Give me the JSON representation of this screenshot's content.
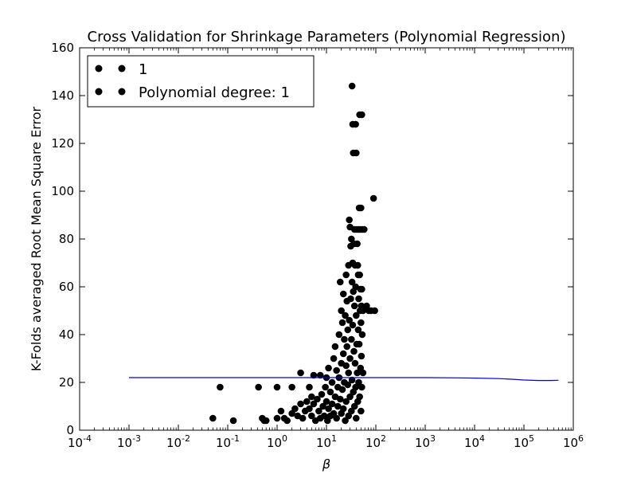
{
  "chart_data": {
    "type": "scatter",
    "title": "Cross Validation for Shrinkage Parameters (Polynomial Regression)",
    "xlabel": "β",
    "ylabel": "K-Folds averaged Root Mean Square Error",
    "xscale": "log",
    "xlim": [
      0.0001,
      1000000
    ],
    "ylim": [
      0,
      160
    ],
    "x_ticks": [
      {
        "value": 0.0001,
        "base": "10",
        "exp": "-4"
      },
      {
        "value": 0.001,
        "base": "10",
        "exp": "-3"
      },
      {
        "value": 0.01,
        "base": "10",
        "exp": "-2"
      },
      {
        "value": 0.1,
        "base": "10",
        "exp": "-1"
      },
      {
        "value": 1,
        "base": "10",
        "exp": "0"
      },
      {
        "value": 10,
        "base": "10",
        "exp": "1"
      },
      {
        "value": 100,
        "base": "10",
        "exp": "2"
      },
      {
        "value": 1000,
        "base": "10",
        "exp": "3"
      },
      {
        "value": 10000,
        "base": "10",
        "exp": "4"
      },
      {
        "value": 100000,
        "base": "10",
        "exp": "5"
      },
      {
        "value": 1000000,
        "base": "10",
        "exp": "6"
      }
    ],
    "y_ticks": [
      0,
      20,
      40,
      60,
      80,
      100,
      120,
      140,
      160
    ],
    "legend": {
      "location": "upper-left",
      "entries": [
        {
          "label": "1",
          "marker": "circle",
          "color": "#000000"
        },
        {
          "label": "Polynomial degree: 1",
          "marker": "circle",
          "color": "#000000"
        }
      ]
    },
    "series": [
      {
        "name": "Polynomial degree: 1",
        "kind": "scatter",
        "color": "#000000",
        "points": [
          [
            0.05,
            5
          ],
          [
            0.07,
            18
          ],
          [
            0.13,
            4
          ],
          [
            0.42,
            18
          ],
          [
            0.5,
            5
          ],
          [
            0.55,
            4
          ],
          [
            0.6,
            4
          ],
          [
            1.0,
            18
          ],
          [
            1.0,
            5
          ],
          [
            1.2,
            8
          ],
          [
            1.4,
            5
          ],
          [
            1.6,
            4
          ],
          [
            2.0,
            18
          ],
          [
            2.0,
            7
          ],
          [
            2.3,
            9
          ],
          [
            2.6,
            6
          ],
          [
            3.0,
            24
          ],
          [
            3.0,
            11
          ],
          [
            3.3,
            5
          ],
          [
            3.7,
            8
          ],
          [
            4.0,
            12
          ],
          [
            4.5,
            18
          ],
          [
            4.5,
            9
          ],
          [
            5.0,
            14
          ],
          [
            5.0,
            6
          ],
          [
            5.5,
            23
          ],
          [
            5.5,
            11
          ],
          [
            6.0,
            4
          ],
          [
            6.5,
            13
          ],
          [
            7.0,
            8
          ],
          [
            7.5,
            23
          ],
          [
            7.5,
            5
          ],
          [
            8.0,
            15
          ],
          [
            8.5,
            10
          ],
          [
            9.0,
            6
          ],
          [
            9.5,
            18
          ],
          [
            10.0,
            22
          ],
          [
            10.0,
            12
          ],
          [
            10.5,
            4
          ],
          [
            11.0,
            26
          ],
          [
            11.0,
            9
          ],
          [
            12.0,
            16
          ],
          [
            12.0,
            6
          ],
          [
            13.0,
            20
          ],
          [
            13.0,
            11
          ],
          [
            14.0,
            30
          ],
          [
            14.0,
            7
          ],
          [
            15.0,
            35
          ],
          [
            15.0,
            14
          ],
          [
            16.0,
            25
          ],
          [
            16.0,
            5
          ],
          [
            17.0,
            18
          ],
          [
            17.0,
            10
          ],
          [
            18.0,
            40
          ],
          [
            18.0,
            22
          ],
          [
            19.0,
            62
          ],
          [
            19.0,
            13
          ],
          [
            20.0,
            50
          ],
          [
            20.0,
            28
          ],
          [
            20.0,
            7
          ],
          [
            21.0,
            45
          ],
          [
            21.0,
            17
          ],
          [
            22.0,
            57
          ],
          [
            22.0,
            32
          ],
          [
            22.0,
            9
          ],
          [
            23.0,
            38
          ],
          [
            23.0,
            20
          ],
          [
            24.0,
            48
          ],
          [
            24.0,
            4
          ],
          [
            25.0,
            65
          ],
          [
            25.0,
            27
          ],
          [
            25.0,
            12
          ],
          [
            26.0,
            54
          ],
          [
            26.0,
            35
          ],
          [
            27.0,
            42
          ],
          [
            27.0,
            19
          ],
          [
            28.0,
            69
          ],
          [
            28.0,
            24
          ],
          [
            28.0,
            6
          ],
          [
            29.0,
            88
          ],
          [
            29.0,
            46
          ],
          [
            30.0,
            85
          ],
          [
            30.0,
            30
          ],
          [
            30.0,
            14
          ],
          [
            31.0,
            77
          ],
          [
            31.0,
            55
          ],
          [
            32.0,
            80
          ],
          [
            32.0,
            38
          ],
          [
            32.0,
            8
          ],
          [
            33.0,
            144
          ],
          [
            33.0,
            62
          ],
          [
            33.0,
            21
          ],
          [
            34.0,
            128
          ],
          [
            34.0,
            70
          ],
          [
            34.0,
            44
          ],
          [
            35.0,
            116
          ],
          [
            35.0,
            58
          ],
          [
            35.0,
            16
          ],
          [
            36.0,
            78
          ],
          [
            36.0,
            33
          ],
          [
            37.0,
            84
          ],
          [
            37.0,
            52
          ],
          [
            37.0,
            10
          ],
          [
            38.0,
            69
          ],
          [
            38.0,
            28
          ],
          [
            39.0,
            128
          ],
          [
            39.0,
            60
          ],
          [
            39.0,
            18
          ],
          [
            40.0,
            116
          ],
          [
            40.0,
            48
          ],
          [
            40.0,
            5
          ],
          [
            41.0,
            84
          ],
          [
            41.0,
            36
          ],
          [
            42.0,
            78
          ],
          [
            42.0,
            24
          ],
          [
            43.0,
            69
          ],
          [
            43.0,
            12
          ],
          [
            44.0,
            65
          ],
          [
            44.0,
            42
          ],
          [
            45.0,
            84
          ],
          [
            45.0,
            55
          ],
          [
            45.0,
            20
          ],
          [
            46.0,
            93
          ],
          [
            46.0,
            36
          ],
          [
            47.0,
            132
          ],
          [
            47.0,
            65
          ],
          [
            47.0,
            14
          ],
          [
            48.0,
            84
          ],
          [
            48.0,
            50
          ],
          [
            49.0,
            59
          ],
          [
            49.0,
            26
          ],
          [
            50.0,
            93
          ],
          [
            50.0,
            45
          ],
          [
            50.0,
            8
          ],
          [
            51.0,
            52
          ],
          [
            51.0,
            31
          ],
          [
            52.0,
            132
          ],
          [
            52.0,
            59
          ],
          [
            52.0,
            18
          ],
          [
            53.0,
            84
          ],
          [
            53.0,
            40
          ],
          [
            55.0,
            50
          ],
          [
            55.0,
            24
          ],
          [
            58.0,
            84
          ],
          [
            65.0,
            52
          ],
          [
            72.0,
            50
          ],
          [
            80.0,
            50
          ],
          [
            90.0,
            97
          ],
          [
            95.0,
            50
          ]
        ]
      },
      {
        "name": "1",
        "kind": "line",
        "color": "#0000cc",
        "points": [
          [
            0.001,
            22.0
          ],
          [
            0.01,
            22.0
          ],
          [
            0.1,
            22.0
          ],
          [
            1,
            22.0
          ],
          [
            10,
            22.0
          ],
          [
            100,
            22.0
          ],
          [
            1000,
            22.0
          ],
          [
            5000,
            21.9
          ],
          [
            10000,
            21.8
          ],
          [
            30000,
            21.6
          ],
          [
            60000,
            21.3
          ],
          [
            100000,
            21.0
          ],
          [
            200000,
            20.8
          ],
          [
            350000,
            20.8
          ],
          [
            500000,
            20.9
          ]
        ]
      }
    ]
  }
}
